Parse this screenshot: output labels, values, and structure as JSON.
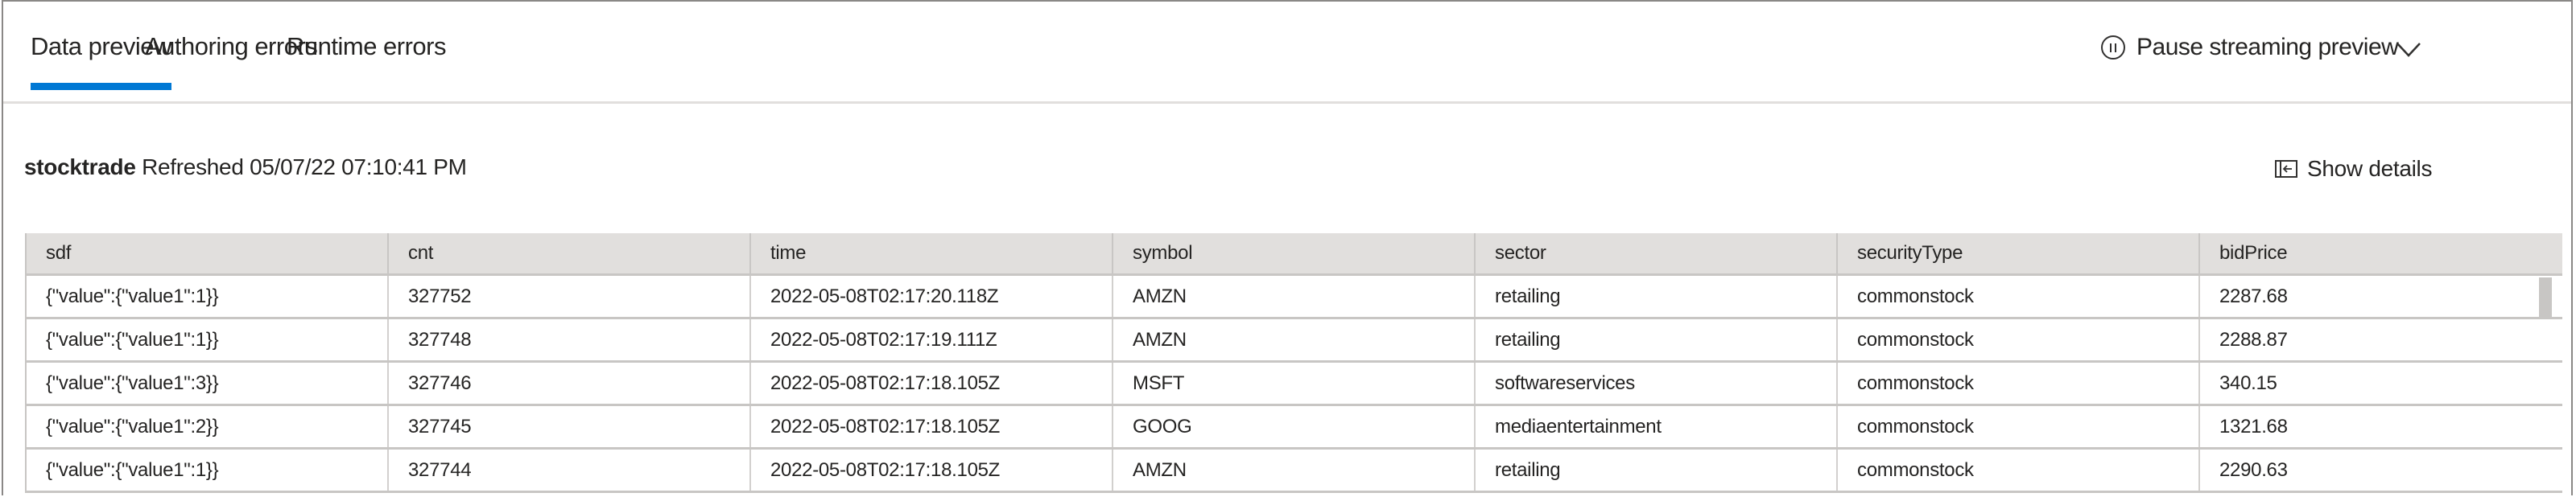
{
  "tabs": [
    {
      "label": "Data preview",
      "active": true
    },
    {
      "label": "Authoring errors",
      "active": false
    },
    {
      "label": "Runtime errors",
      "active": false
    }
  ],
  "toolbar": {
    "pause_label": "Pause streaming preview",
    "pause_icon": "pause-circle-icon",
    "expand_icon": "chevron-down-icon",
    "show_details_label": "Show details",
    "show_details_icon": "panel-open-icon"
  },
  "preview": {
    "source_name": "stocktrade",
    "refreshed_text": "Refreshed 05/07/22 07:10:41 PM"
  },
  "table": {
    "columns": [
      "sdf",
      "cnt",
      "time",
      "symbol",
      "sector",
      "securityType",
      "bidPrice"
    ],
    "rows": [
      [
        "{\"value\":{\"value1\":1}}",
        "327752",
        "2022-05-08T02:17:20.118Z",
        "AMZN",
        "retailing",
        "commonstock",
        "2287.68"
      ],
      [
        "{\"value\":{\"value1\":1}}",
        "327748",
        "2022-05-08T02:17:19.111Z",
        "AMZN",
        "retailing",
        "commonstock",
        "2288.87"
      ],
      [
        "{\"value\":{\"value1\":3}}",
        "327746",
        "2022-05-08T02:17:18.105Z",
        "MSFT",
        "softwareservices",
        "commonstock",
        "340.15"
      ],
      [
        "{\"value\":{\"value1\":2}}",
        "327745",
        "2022-05-08T02:17:18.105Z",
        "GOOG",
        "mediaentertainment",
        "commonstock",
        "1321.68"
      ],
      [
        "{\"value\":{\"value1\":1}}",
        "327744",
        "2022-05-08T02:17:18.105Z",
        "AMZN",
        "retailing",
        "commonstock",
        "2290.63"
      ]
    ]
  },
  "colors": {
    "accent": "#0078d4",
    "header_bg": "#e1dfdd",
    "text": "#252423"
  }
}
